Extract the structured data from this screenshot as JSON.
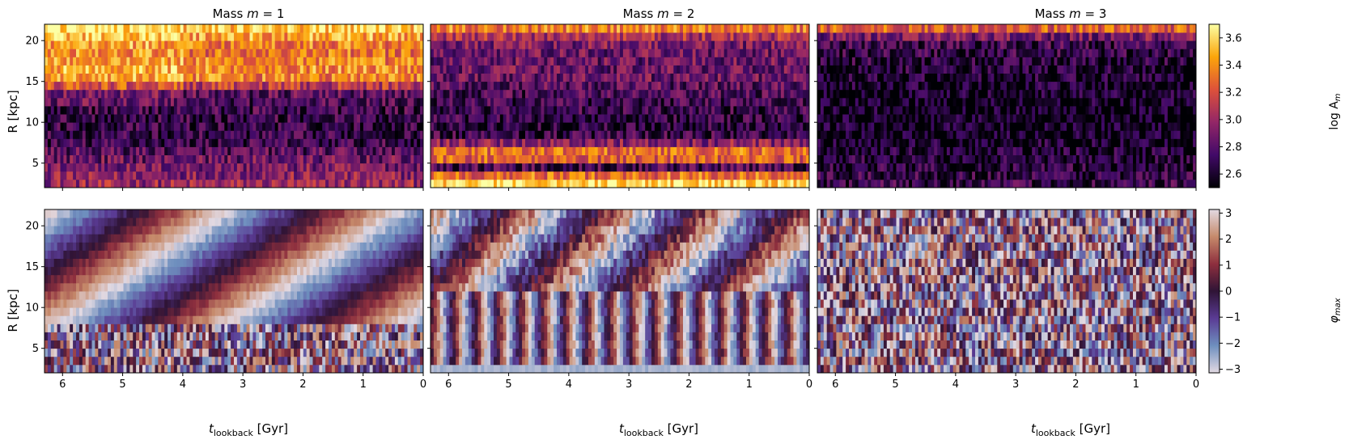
{
  "figure": {
    "col_titles": [
      "Mass $m=1$",
      "Mass $m=2$",
      "Mass $m=3$"
    ],
    "col_title_parts": [
      {
        "prefix": "Mass ",
        "var": "m",
        "suffix": " = 1"
      },
      {
        "prefix": "Mass ",
        "var": "m",
        "suffix": " = 2"
      },
      {
        "prefix": "Mass ",
        "var": "m",
        "suffix": " = 3"
      }
    ],
    "ylabel": "R [kpc]",
    "xlabel": {
      "main": "t",
      "sub": "lookback",
      "unit": " [Gyr]"
    },
    "x_ticks": [
      "6",
      "5",
      "4",
      "3",
      "2",
      "1",
      "0"
    ],
    "y_ticks": [
      "5",
      "10",
      "15",
      "20"
    ]
  },
  "colorbars": [
    {
      "label": "log A",
      "label_sub": "m",
      "ticks": [
        "2.6",
        "2.8",
        "3.0",
        "3.2",
        "3.4",
        "3.6"
      ],
      "colormap": "inferno",
      "colors": [
        "#000004",
        "#420a68",
        "#932667",
        "#dd513a",
        "#fca50a",
        "#fcffa4"
      ]
    },
    {
      "label": "φ",
      "label_sub": "max",
      "ticks": [
        "−3",
        "−2",
        "−1",
        "0",
        "1",
        "2",
        "3"
      ],
      "colormap": "twilight",
      "colors": [
        "#e2d9e2",
        "#6e8fbe",
        "#5a3b94",
        "#2f1436",
        "#8e2f3e",
        "#c68a6b",
        "#e2d9e2"
      ]
    }
  ],
  "chart_data": [
    {
      "type": "heatmap",
      "title": "Mass $m=1$",
      "row": "log A_m",
      "xlabel": "t_lookback [Gyr]",
      "ylabel": "R [kpc]",
      "xlim": [
        6.3,
        0
      ],
      "ylim": [
        2,
        22
      ],
      "x_ticks": [
        6,
        5,
        4,
        3,
        2,
        1,
        0
      ],
      "y_ticks": [
        5,
        10,
        15,
        20
      ],
      "colorbar": "log A_m",
      "clim": [
        2.5,
        3.7
      ],
      "n_time_bins": 120,
      "n_radius_bins": 20,
      "radius_profile_mean": [
        3.0,
        2.95,
        2.9,
        2.85,
        2.78,
        2.7,
        2.68,
        2.68,
        2.7,
        2.72,
        2.75,
        2.8,
        3.1,
        3.35,
        3.4,
        3.35,
        3.3,
        3.35,
        3.45,
        3.55
      ]
    },
    {
      "type": "heatmap",
      "title": "Mass $m=2$",
      "row": "log A_m",
      "xlabel": "t_lookback [Gyr]",
      "ylabel": "R [kpc]",
      "xlim": [
        6.3,
        0
      ],
      "ylim": [
        2,
        22
      ],
      "x_ticks": [
        6,
        5,
        4,
        3,
        2,
        1,
        0
      ],
      "y_ticks": [
        5,
        10,
        15,
        20
      ],
      "colorbar": "log A_m",
      "clim": [
        2.5,
        3.7
      ],
      "n_time_bins": 120,
      "n_radius_bins": 20,
      "radius_profile_mean": [
        3.6,
        3.3,
        2.75,
        3.25,
        3.3,
        2.95,
        2.7,
        2.65,
        2.68,
        2.7,
        2.72,
        2.75,
        2.8,
        2.85,
        2.85,
        2.85,
        2.85,
        2.9,
        3.05,
        3.35
      ]
    },
    {
      "type": "heatmap",
      "title": "Mass $m=3$",
      "row": "log A_m",
      "xlabel": "t_lookback [Gyr]",
      "ylabel": "R [kpc]",
      "xlim": [
        6.3,
        0
      ],
      "ylim": [
        2,
        22
      ],
      "x_ticks": [
        6,
        5,
        4,
        3,
        2,
        1,
        0
      ],
      "y_ticks": [
        5,
        10,
        15,
        20
      ],
      "colorbar": "log A_m",
      "clim": [
        2.5,
        3.7
      ],
      "n_time_bins": 120,
      "n_radius_bins": 20,
      "radius_profile_mean": [
        2.7,
        2.68,
        2.65,
        2.62,
        2.6,
        2.58,
        2.56,
        2.55,
        2.55,
        2.55,
        2.56,
        2.57,
        2.58,
        2.6,
        2.62,
        2.65,
        2.68,
        2.72,
        2.9,
        3.25
      ]
    },
    {
      "type": "heatmap",
      "title": "",
      "row": "phi_max",
      "xlabel": "t_lookback [Gyr]",
      "ylabel": "R [kpc]",
      "xlim": [
        6.3,
        0
      ],
      "ylim": [
        2,
        22
      ],
      "x_ticks": [
        6,
        5,
        4,
        3,
        2,
        1,
        0
      ],
      "y_ticks": [
        5,
        10,
        15,
        20
      ],
      "colorbar": "phi_max",
      "clim": [
        -3.14,
        3.14
      ],
      "n_time_bins": 120,
      "n_radius_bins": 20,
      "pattern": "diagonal bands rotating with time, smoother at large R, noisy below 8 kpc"
    },
    {
      "type": "heatmap",
      "title": "",
      "row": "phi_max",
      "xlabel": "t_lookback [Gyr]",
      "ylabel": "R [kpc]",
      "xlim": [
        6.3,
        0
      ],
      "ylim": [
        2,
        22
      ],
      "x_ticks": [
        6,
        5,
        4,
        3,
        2,
        1,
        0
      ],
      "y_ticks": [
        5,
        10,
        15,
        20
      ],
      "colorbar": "phi_max",
      "clim": [
        -3.14,
        3.14
      ],
      "n_time_bins": 120,
      "n_radius_bins": 20,
      "pattern": "vertical stripes (fast pattern) inside 12 kpc, tilted bands outside, constant band at R<3 kpc"
    },
    {
      "type": "heatmap",
      "title": "",
      "row": "phi_max",
      "xlabel": "t_lookback [Gyr]",
      "ylabel": "R [kpc]",
      "xlim": [
        6.3,
        0
      ],
      "ylim": [
        2,
        22
      ],
      "x_ticks": [
        6,
        5,
        4,
        3,
        2,
        1,
        0
      ],
      "y_ticks": [
        5,
        10,
        15,
        20
      ],
      "colorbar": "phi_max",
      "clim": [
        -3.14,
        3.14
      ],
      "n_time_bins": 120,
      "n_radius_bins": 20,
      "pattern": "mostly noisy, faint tilted bands at large R"
    }
  ]
}
